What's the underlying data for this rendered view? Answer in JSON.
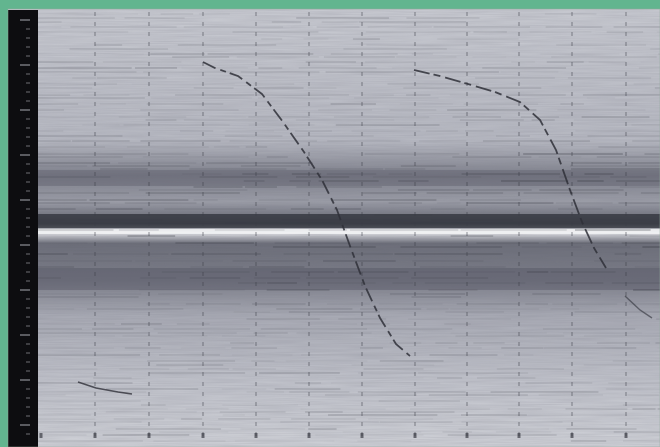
{
  "image": {
    "kind": "scanned spectrogram / strip-chart recording",
    "colors": {
      "border": "#62b58f",
      "paper": "#d4d6dc",
      "paper_dark": "#9a9ca6",
      "band": "#6d6f7c",
      "band_core": "#3e404a",
      "scale_strip": "#0d0d10",
      "trace": "#2f3038",
      "grid": "#3a3c45"
    },
    "icons": [
      "dark-vertical-scale-strip",
      "dashed-vertical-gridlines",
      "curved-traces"
    ]
  }
}
